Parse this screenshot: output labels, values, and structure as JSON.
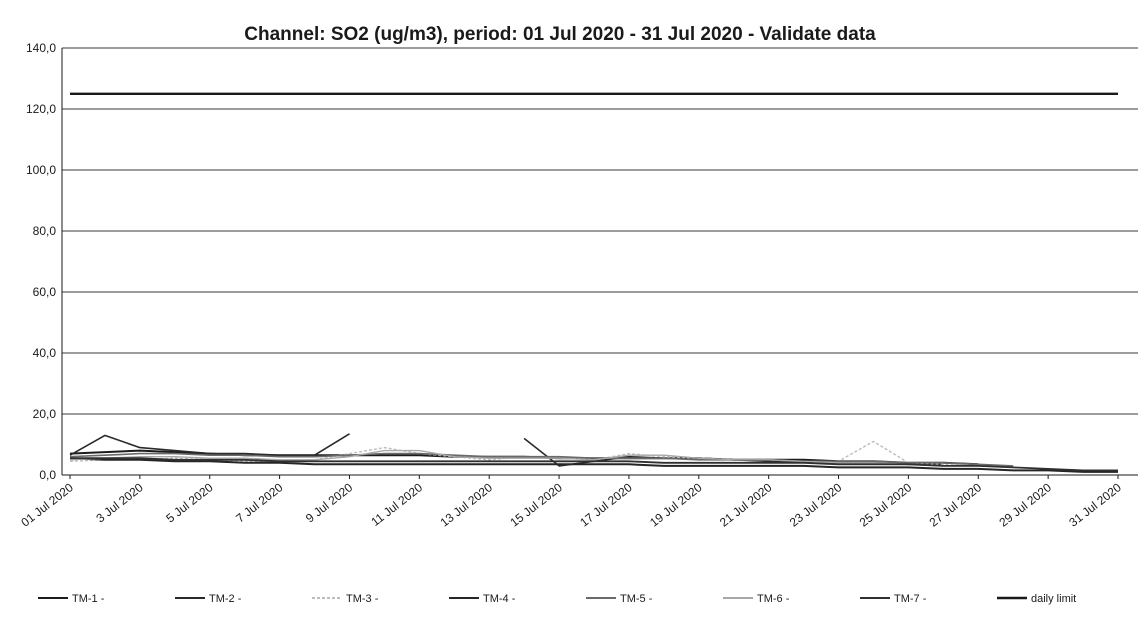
{
  "chart_data": {
    "type": "line",
    "title": "Channel: SO2 (ug/m3), period: 01 Jul 2020 - 31 Jul 2020 - Validate data",
    "xlabel": "",
    "ylabel": "",
    "ylim": [
      0,
      140
    ],
    "yticks": [
      "0,0",
      "20,0",
      "40,0",
      "60,0",
      "80,0",
      "100,0",
      "120,0",
      "140,0"
    ],
    "xticks": [
      "01 Jul 2020",
      "3 Jul 2020",
      "5 Jul 2020",
      "7 Jul 2020",
      "9 Jul 2020",
      "11 Jul 2020",
      "13 Jul 2020",
      "15 Jul 2020",
      "17 Jul 2020",
      "19 Jul 2020",
      "21 Jul 2020",
      "23 Jul 2020",
      "25 Jul 2020",
      "27 Jul 2020",
      "29 Jul 2020",
      "31 Jul 2020"
    ],
    "x": [
      "01 Jul 2020",
      "02 Jul 2020",
      "03 Jul 2020",
      "04 Jul 2020",
      "05 Jul 2020",
      "06 Jul 2020",
      "07 Jul 2020",
      "08 Jul 2020",
      "09 Jul 2020",
      "10 Jul 2020",
      "11 Jul 2020",
      "12 Jul 2020",
      "13 Jul 2020",
      "14 Jul 2020",
      "15 Jul 2020",
      "16 Jul 2020",
      "17 Jul 2020",
      "18 Jul 2020",
      "19 Jul 2020",
      "20 Jul 2020",
      "21 Jul 2020",
      "22 Jul 2020",
      "23 Jul 2020",
      "24 Jul 2020",
      "25 Jul 2020",
      "26 Jul 2020",
      "27 Jul 2020",
      "28 Jul 2020",
      "29 Jul 2020",
      "30 Jul 2020",
      "31 Jul 2020"
    ],
    "grid": true,
    "legend": "bottom",
    "series": [
      {
        "name": "TM-1 -",
        "color": "#1c1c1c",
        "width": 2,
        "dash": "",
        "values": [
          7,
          7.5,
          8,
          7.5,
          7,
          6.5,
          6.5,
          6.5,
          6.5,
          6.5,
          6.5,
          6,
          6,
          6,
          5.5,
          5.5,
          5.5,
          5.5,
          5.5,
          5,
          5,
          5,
          4.5,
          4.5,
          4,
          4,
          3.5,
          null,
          null,
          null,
          null
        ]
      },
      {
        "name": "TM-2 -",
        "color": "#2a2a2a",
        "width": 1.6,
        "dash": "",
        "values": [
          6.5,
          13,
          9,
          8,
          7,
          7,
          6.5,
          6.5,
          13.5,
          null,
          null,
          null,
          null,
          12,
          3,
          4.5,
          6,
          5.5,
          5.5,
          5,
          4.5,
          4.5,
          4,
          4,
          3.5,
          3.5,
          null,
          null,
          null,
          null,
          null
        ]
      },
      {
        "name": "TM-3 -",
        "color": "#bdbdbd",
        "width": 1.4,
        "dash": "3,2",
        "values": [
          4.5,
          5,
          5,
          5.5,
          5,
          4.5,
          4.5,
          5,
          7,
          9,
          7,
          6,
          5,
          6,
          6,
          5,
          7,
          6,
          5.5,
          5,
          5,
          4.5,
          4.5,
          11,
          4,
          3.5,
          3,
          3,
          null,
          null,
          null
        ]
      },
      {
        "name": "TM-4 -",
        "color": "#262626",
        "width": 2,
        "dash": "",
        "values": [
          5.5,
          5,
          5,
          4.5,
          4.5,
          4,
          4,
          3.5,
          3.5,
          3.5,
          3.5,
          3.5,
          3.5,
          3.5,
          3.5,
          3.5,
          3.5,
          3,
          3,
          3,
          3,
          3,
          2.5,
          2.5,
          2.5,
          2,
          2,
          1.5,
          1.5,
          1,
          1
        ]
      },
      {
        "name": "TM-5 -",
        "color": "#6a6a6a",
        "width": 1.6,
        "dash": "",
        "values": [
          6,
          6.5,
          7,
          7,
          6.5,
          6.5,
          6,
          6,
          6.5,
          7,
          7,
          6.5,
          6,
          6,
          6,
          5.5,
          5.5,
          5.5,
          5,
          5,
          5,
          4.5,
          4.5,
          4.5,
          4,
          4,
          3.5,
          3,
          null,
          null,
          null
        ]
      },
      {
        "name": "TM-6 -",
        "color": "#a8a8a8",
        "width": 1.4,
        "dash": "",
        "values": [
          5,
          5.5,
          6,
          6,
          5.5,
          5.5,
          5,
          5,
          6,
          8,
          8,
          6,
          5.5,
          5.5,
          5.5,
          5,
          6.5,
          6.5,
          5.5,
          5,
          5,
          4.5,
          4,
          4,
          3.5,
          3,
          3,
          2.5,
          null,
          null,
          null
        ]
      },
      {
        "name": "TM-7 -",
        "color": "#303030",
        "width": 1.8,
        "dash": "",
        "values": [
          5.5,
          5.5,
          5.5,
          5,
          5,
          5,
          4.5,
          4.5,
          4.5,
          4.5,
          4.5,
          4.5,
          4.5,
          4.5,
          4.5,
          4.5,
          4.5,
          4,
          4,
          4,
          4,
          4,
          3.5,
          3.5,
          3.5,
          3,
          3,
          2.5,
          2,
          1.5,
          1.5
        ]
      },
      {
        "name": "daily limit",
        "color": "#1a1a1a",
        "width": 2.4,
        "dash": "",
        "values": [
          125,
          125,
          125,
          125,
          125,
          125,
          125,
          125,
          125,
          125,
          125,
          125,
          125,
          125,
          125,
          125,
          125,
          125,
          125,
          125,
          125,
          125,
          125,
          125,
          125,
          125,
          125,
          125,
          125,
          125,
          125
        ]
      }
    ]
  }
}
